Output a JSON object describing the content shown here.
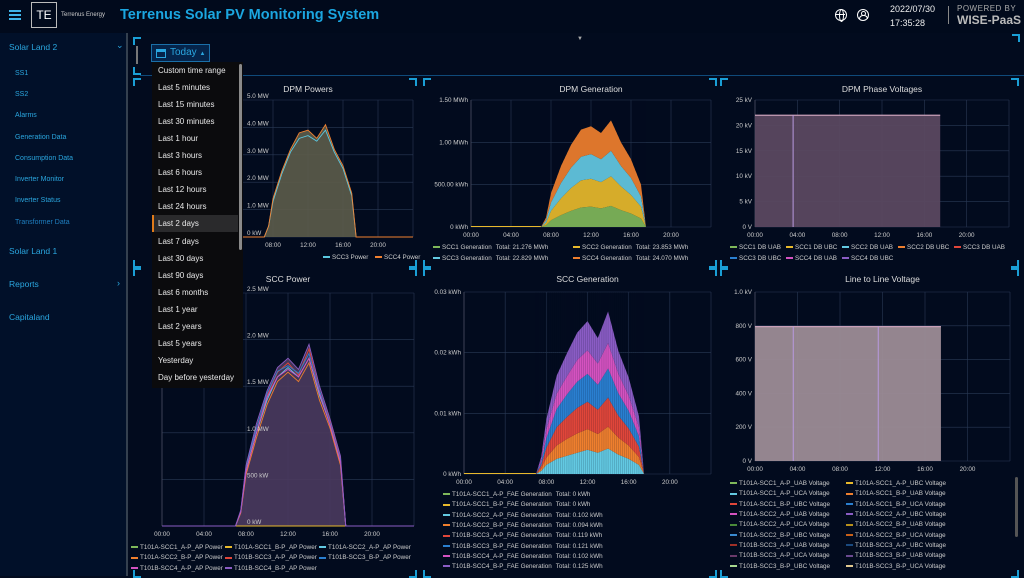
{
  "header": {
    "logo_mark": "TE",
    "logo_text": "Terrenus Energy",
    "title": "Terrenus Solar PV Monitoring System",
    "date": "2022/07/30",
    "time": "17:35:28",
    "powered_by": "POWERED BY",
    "brand": "WISE-PaaS"
  },
  "sidebar": {
    "sections": [
      {
        "label": "Solar Land 2",
        "expanded": true
      },
      {
        "label": "Solar Land 1"
      },
      {
        "label": "Reports"
      },
      {
        "label": "Capitaland"
      }
    ],
    "sub_items": [
      "SS1",
      "SS2",
      "Alarms",
      "Generation Data",
      "Consumption Data",
      "Inverter Monitor",
      "Inverter Status",
      "Transformer Data"
    ]
  },
  "time_picker": {
    "label": "Today",
    "options": [
      "Custom time range",
      "Last 5 minutes",
      "Last 15 minutes",
      "Last 30 minutes",
      "Last 1 hour",
      "Last 3 hours",
      "Last 6 hours",
      "Last 12 hours",
      "Last 24 hours",
      "Last 2 days",
      "Last 7 days",
      "Last 30 days",
      "Last 90 days",
      "Last 6 months",
      "Last 1 year",
      "Last 2 years",
      "Last 5 years",
      "Yesterday",
      "Day before yesterday"
    ],
    "highlighted": "Last 2 days"
  },
  "chart_data": [
    {
      "id": "dpm-powers",
      "title": "DPM Powers",
      "type": "line",
      "ylim": [
        0,
        5
      ],
      "yticks": [
        {
          "v": 0,
          "label": "0 kW"
        },
        {
          "v": 1,
          "label": "1.0 MW"
        },
        {
          "v": 2,
          "label": "2.0 MW"
        },
        {
          "v": 3,
          "label": "3.0 MW"
        },
        {
          "v": 4,
          "label": "4.0 MW"
        },
        {
          "v": 5,
          "label": "5.0 MW"
        }
      ],
      "xticks": [
        {
          "v": 8,
          "label": "08:00"
        },
        {
          "v": 12,
          "label": "12:00"
        },
        {
          "v": 16,
          "label": "16:00"
        },
        {
          "v": 20,
          "label": "20:00"
        }
      ],
      "x": [
        7,
        7.5,
        8,
        9,
        10,
        11,
        12,
        13,
        14,
        15,
        16,
        17,
        17.5
      ],
      "series": [
        {
          "name": "SCC3 Power",
          "color": "#5bc8e0",
          "values": [
            0,
            0.4,
            1.3,
            2.3,
            3.1,
            3.6,
            3.7,
            3.5,
            3.9,
            3.1,
            2.5,
            1.5,
            0
          ]
        },
        {
          "name": "SCC4 Power",
          "color": "#f08030",
          "values": [
            0,
            0.4,
            1.4,
            2.4,
            3.2,
            3.8,
            3.9,
            3.6,
            4.1,
            3.2,
            2.6,
            1.6,
            0
          ]
        }
      ],
      "fill": "#5c5c4a"
    },
    {
      "id": "dpm-generation",
      "title": "DPM Generation",
      "type": "stacked-bar",
      "ylim": [
        0,
        1.5
      ],
      "yticks": [
        {
          "v": 0,
          "label": "0 kWh"
        },
        {
          "v": 0.5,
          "label": "500.00 kWh"
        },
        {
          "v": 1,
          "label": "1.00 MWh"
        },
        {
          "v": 1.5,
          "label": "1.50 MWh"
        }
      ],
      "xticks": [
        {
          "v": 0,
          "label": "00:00"
        },
        {
          "v": 4,
          "label": "04:00"
        },
        {
          "v": 8,
          "label": "08:00"
        },
        {
          "v": 12,
          "label": "12:00"
        },
        {
          "v": 16,
          "label": "16:00"
        },
        {
          "v": 20,
          "label": "20:00"
        }
      ],
      "x": [
        7,
        7.5,
        8,
        9,
        10,
        11,
        12,
        13,
        14,
        15,
        16,
        17,
        17.5
      ],
      "series": [
        {
          "name": "SCC1 Generation",
          "total": "Total: 21.276 MWh",
          "color": "#7fb85a",
          "values": [
            0,
            0.02,
            0.08,
            0.14,
            0.19,
            0.23,
            0.24,
            0.22,
            0.25,
            0.2,
            0.16,
            0.1,
            0
          ]
        },
        {
          "name": "SCC2 Generation",
          "total": "Total: 23.853 MWh",
          "color": "#e8b92c",
          "values": [
            0,
            0.03,
            0.11,
            0.2,
            0.27,
            0.32,
            0.33,
            0.31,
            0.35,
            0.28,
            0.22,
            0.14,
            0
          ]
        },
        {
          "name": "SCC3 Generation",
          "total": "Total: 22.829 MWh",
          "color": "#63c9e2",
          "values": [
            0,
            0.03,
            0.1,
            0.18,
            0.24,
            0.28,
            0.29,
            0.27,
            0.3,
            0.24,
            0.2,
            0.12,
            0
          ]
        },
        {
          "name": "SCC4 Generation",
          "total": "Total: 24.070 MWh",
          "color": "#ef7f2e",
          "values": [
            0,
            0.03,
            0.11,
            0.2,
            0.27,
            0.32,
            0.33,
            0.31,
            0.36,
            0.28,
            0.22,
            0.14,
            0
          ]
        }
      ]
    },
    {
      "id": "dpm-phase-voltages",
      "title": "DPM Phase Voltages",
      "type": "area",
      "ylim": [
        0,
        25
      ],
      "yticks": [
        {
          "v": 0,
          "label": "0 V"
        },
        {
          "v": 5,
          "label": "5 kV"
        },
        {
          "v": 10,
          "label": "10 kV"
        },
        {
          "v": 15,
          "label": "15 kV"
        },
        {
          "v": 20,
          "label": "20 kV"
        },
        {
          "v": 25,
          "label": "25 kV"
        }
      ],
      "xticks": [
        {
          "v": 0,
          "label": "00:00"
        },
        {
          "v": 4,
          "label": "04:00"
        },
        {
          "v": 8,
          "label": "08:00"
        },
        {
          "v": 12,
          "label": "12:00"
        },
        {
          "v": 16,
          "label": "16:00"
        },
        {
          "v": 20,
          "label": "20:00"
        }
      ],
      "x_range": [
        0,
        17.5
      ],
      "level": 22,
      "dropouts": [
        3.6
      ],
      "fill": "#5a4860",
      "series": [
        {
          "name": "SCC1 DB UAB",
          "color": "#7fb85a"
        },
        {
          "name": "SCC1 DB UBC",
          "color": "#e8b92c"
        },
        {
          "name": "SCC2 DB UAB",
          "color": "#63c9e2"
        },
        {
          "name": "SCC2 DB UBC",
          "color": "#ef7f2e"
        },
        {
          "name": "SCC3 DB UAB",
          "color": "#e0463a"
        },
        {
          "name": "SCC3 DB UBC",
          "color": "#2a7fd0"
        },
        {
          "name": "SCC4 DB UAB",
          "color": "#d452c0"
        },
        {
          "name": "SCC4 DB UBC",
          "color": "#8a5cc4"
        }
      ]
    },
    {
      "id": "scc-power",
      "title": "SCC Power",
      "type": "line",
      "ylim": [
        0,
        2.5
      ],
      "yticks": [
        {
          "v": 0,
          "label": "0 kW"
        },
        {
          "v": 0.5,
          "label": "500 kW"
        },
        {
          "v": 1,
          "label": "1.0 MW"
        },
        {
          "v": 1.5,
          "label": "1.5 MW"
        },
        {
          "v": 2,
          "label": "2.0 MW"
        },
        {
          "v": 2.5,
          "label": "2.5 MW"
        }
      ],
      "xticks": [
        {
          "v": 0,
          "label": "00:00"
        },
        {
          "v": 4,
          "label": "04:00"
        },
        {
          "v": 8,
          "label": "08:00"
        },
        {
          "v": 12,
          "label": "12:00"
        },
        {
          "v": 16,
          "label": "16:00"
        },
        {
          "v": 20,
          "label": "20:00"
        }
      ],
      "x": [
        7,
        7.5,
        8,
        9,
        10,
        11,
        12,
        13,
        14,
        15,
        16,
        17,
        17.5
      ],
      "fill": "#4a3a5e",
      "series": [
        {
          "name": "T101A-SCC1_A-P_AP Power",
          "color": "#7fb85a",
          "values": [
            0,
            0,
            0,
            0,
            0,
            0,
            0,
            0,
            0,
            0,
            0,
            0,
            0
          ]
        },
        {
          "name": "T101A-SCC1_B-P_AP Power",
          "color": "#e8b92c",
          "values": [
            0,
            0,
            0,
            0,
            0,
            0,
            0,
            0,
            0,
            0,
            0,
            0,
            0
          ]
        },
        {
          "name": "T101A-SCC2_A-P_AP Power",
          "color": "#63c9e2",
          "values": [
            0,
            0.15,
            0.6,
            1.0,
            1.35,
            1.6,
            1.7,
            1.6,
            1.8,
            1.4,
            1.1,
            0.7,
            0
          ]
        },
        {
          "name": "T101A-SCC2_B-P_AP Power",
          "color": "#ef7f2e",
          "values": [
            0,
            0.14,
            0.55,
            0.95,
            1.3,
            1.55,
            1.65,
            1.55,
            1.75,
            1.35,
            1.05,
            0.65,
            0
          ]
        },
        {
          "name": "T101B-SCC3_A-P_AP Power",
          "color": "#e0463a",
          "values": [
            0,
            0.16,
            0.62,
            1.05,
            1.4,
            1.65,
            1.75,
            1.62,
            1.9,
            1.45,
            1.12,
            0.72,
            0
          ]
        },
        {
          "name": "T101B-SCC3_B-P_AP Power",
          "color": "#2a7fd0",
          "values": [
            0,
            0.16,
            0.63,
            1.05,
            1.42,
            1.66,
            1.72,
            1.64,
            1.85,
            1.45,
            1.1,
            0.7,
            0
          ]
        },
        {
          "name": "T101B-SCC4_A-P_AP Power",
          "color": "#d452c0",
          "values": [
            0,
            0.15,
            0.58,
            1.0,
            1.38,
            1.6,
            1.68,
            1.6,
            1.8,
            1.42,
            1.08,
            0.68,
            0
          ]
        },
        {
          "name": "T101B-SCC4_B-P_AP Power",
          "color": "#8a5cc4",
          "values": [
            0,
            0.17,
            0.65,
            1.1,
            1.45,
            1.7,
            1.8,
            1.68,
            1.95,
            1.5,
            1.15,
            0.75,
            0
          ]
        }
      ]
    },
    {
      "id": "scc-generation",
      "title": "SCC Generation",
      "type": "stacked-bar",
      "ylim": [
        0,
        0.03
      ],
      "yticks": [
        {
          "v": 0,
          "label": "0 kWh"
        },
        {
          "v": 0.01,
          "label": "0.01 kWh"
        },
        {
          "v": 0.02,
          "label": "0.02 kWh"
        },
        {
          "v": 0.03,
          "label": "0.03 kWh"
        }
      ],
      "xticks": [
        {
          "v": 0,
          "label": "00:00"
        },
        {
          "v": 4,
          "label": "04:00"
        },
        {
          "v": 8,
          "label": "08:00"
        },
        {
          "v": 12,
          "label": "12:00"
        },
        {
          "v": 16,
          "label": "16:00"
        },
        {
          "v": 20,
          "label": "20:00"
        }
      ],
      "x": [
        7,
        7.5,
        8,
        9,
        10,
        11,
        12,
        13,
        14,
        15,
        16,
        17,
        17.5
      ],
      "series": [
        {
          "name": "T101A-SCC1_A-P_FAE Generation",
          "total": "Total: 0 kWh",
          "color": "#7fb85a",
          "values": [
            0,
            0,
            0,
            0,
            0,
            0,
            0,
            0,
            0,
            0,
            0,
            0,
            0
          ]
        },
        {
          "name": "T101A-SCC1_B-P_FAE Generation",
          "total": "Total: 0 kWh",
          "color": "#e8b92c",
          "values": [
            0,
            0,
            0,
            0,
            0,
            0,
            0,
            0,
            0,
            0,
            0,
            0,
            0
          ]
        },
        {
          "name": "T101A-SCC2_A-P_FAE Generation",
          "total": "Total: 0.102 kWh",
          "color": "#63c9e2",
          "values": [
            0,
            0.0005,
            0.0015,
            0.0025,
            0.003,
            0.0035,
            0.004,
            0.0035,
            0.0042,
            0.0032,
            0.0025,
            0.0015,
            0
          ]
        },
        {
          "name": "T101A-SCC2_B-P_FAE Generation",
          "total": "Total: 0.094 kWh",
          "color": "#ef7f2e",
          "values": [
            0,
            0.0004,
            0.0012,
            0.0022,
            0.0028,
            0.0032,
            0.0034,
            0.0031,
            0.0036,
            0.0028,
            0.0022,
            0.0013,
            0
          ]
        },
        {
          "name": "T101B-SCC3_A-P_FAE Generation",
          "total": "Total: 0.119 kWh",
          "color": "#e0463a",
          "values": [
            0,
            0.0005,
            0.0016,
            0.003,
            0.0036,
            0.0042,
            0.0045,
            0.004,
            0.0048,
            0.0036,
            0.0028,
            0.0017,
            0
          ]
        },
        {
          "name": "T101B-SCC3_B-P_FAE Generation",
          "total": "Total: 0.121 kWh",
          "color": "#2a7fd0",
          "values": [
            0,
            0.0005,
            0.0016,
            0.003,
            0.0037,
            0.0043,
            0.0046,
            0.0041,
            0.0048,
            0.0037,
            0.0029,
            0.0017,
            0
          ]
        },
        {
          "name": "T101B-SCC4_A-P_FAE Generation",
          "total": "Total: 0.102 kWh",
          "color": "#d452c0",
          "values": [
            0,
            0.0004,
            0.0014,
            0.0025,
            0.003,
            0.0036,
            0.0039,
            0.0035,
            0.0042,
            0.0032,
            0.0025,
            0.0015,
            0
          ]
        },
        {
          "name": "T101B-SCC4_B-P_FAE Generation",
          "total": "Total: 0.125 kWh",
          "color": "#8a5cc4",
          "values": [
            0,
            0.0005,
            0.0017,
            0.003,
            0.0038,
            0.0045,
            0.0048,
            0.0042,
            0.0052,
            0.0038,
            0.003,
            0.0018,
            0
          ]
        }
      ]
    },
    {
      "id": "line-to-line-voltage",
      "title": "Line to Line Voltage",
      "type": "area",
      "ylim": [
        0,
        1000
      ],
      "yticks": [
        {
          "v": 0,
          "label": "0 V"
        },
        {
          "v": 200,
          "label": "200 V"
        },
        {
          "v": 400,
          "label": "400 V"
        },
        {
          "v": 600,
          "label": "600 V"
        },
        {
          "v": 800,
          "label": "800 V"
        },
        {
          "v": 1000,
          "label": "1.0 kV"
        }
      ],
      "xticks": [
        {
          "v": 0,
          "label": "00:00"
        },
        {
          "v": 4,
          "label": "04:00"
        },
        {
          "v": 8,
          "label": "08:00"
        },
        {
          "v": 12,
          "label": "12:00"
        },
        {
          "v": 16,
          "label": "16:00"
        },
        {
          "v": 20,
          "label": "20:00"
        }
      ],
      "x_range": [
        0,
        17.5
      ],
      "level": 795,
      "dropouts": [
        3.6,
        11.6
      ],
      "fill": "#9c8c96",
      "series": [
        {
          "name": "T101A-SCC1_A-P_UAB Voltage",
          "color": "#7fb85a"
        },
        {
          "name": "T101A-SCC1_A-P_UBC Voltage",
          "color": "#e8b92c"
        },
        {
          "name": "T101A-SCC1_A-P_UCA Voltage",
          "color": "#63c9e2"
        },
        {
          "name": "T101A-SCC1_B-P_UAB Voltage",
          "color": "#ef7f2e"
        },
        {
          "name": "T101A-SCC1_B-P_UBC Voltage",
          "color": "#e0463a"
        },
        {
          "name": "T101A-SCC1_B-P_UCA Voltage",
          "color": "#2a7fd0"
        },
        {
          "name": "T101A-SCC2_A-P_UAB Voltage",
          "color": "#d452c0"
        },
        {
          "name": "T101A-SCC2_A-P_UBC Voltage",
          "color": "#8a5cc4"
        },
        {
          "name": "T101A-SCC2_A-P_UCA Voltage",
          "color": "#4a8a3a"
        },
        {
          "name": "T101A-SCC2_B-P_UAB Voltage",
          "color": "#b8901c"
        },
        {
          "name": "T101A-SCC2_B-P_UBC Voltage",
          "color": "#3a8ad0"
        },
        {
          "name": "T101A-SCC2_B-P_UCA Voltage",
          "color": "#c86018"
        },
        {
          "name": "T101B-SCC3_A-P_UAB Voltage",
          "color": "#a03028"
        },
        {
          "name": "T101B-SCC3_A-P_UBC Voltage",
          "color": "#1a4a80"
        },
        {
          "name": "T101B-SCC3_A-P_UCA Voltage",
          "color": "#6a3a6a"
        },
        {
          "name": "T101B-SCC3_B-P_UAB Voltage",
          "color": "#6a4a90"
        },
        {
          "name": "T101B-SCC3_B-P_UBC Voltage",
          "color": "#a8d890"
        },
        {
          "name": "T101B-SCC3_B-P_UCA Voltage",
          "color": "#e0c890"
        }
      ]
    }
  ]
}
